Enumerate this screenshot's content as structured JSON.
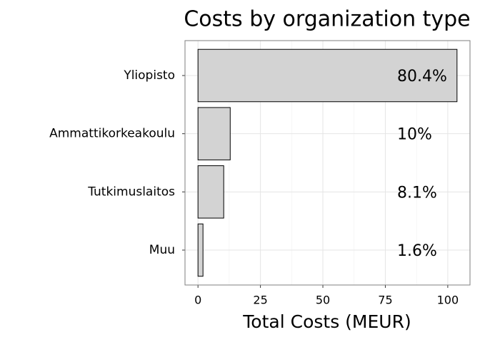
{
  "chart_data": {
    "type": "bar",
    "orientation": "horizontal",
    "title": "Costs by organization type",
    "x_label": "Total Costs (MEUR)",
    "categories": [
      "Yliopisto",
      "Ammattikorkeakoulu",
      "Tutkimuslaitos",
      "Muu"
    ],
    "values": [
      103.7,
      12.9,
      10.3,
      2.0
    ],
    "share_labels": [
      "80.4%",
      "10%",
      "8.1%",
      "1.6%"
    ],
    "color": "#d3d3d3",
    "xlim": [
      -5.2,
      108.9
    ],
    "xticks": [
      0,
      25,
      50,
      75,
      100
    ],
    "grid": true
  }
}
